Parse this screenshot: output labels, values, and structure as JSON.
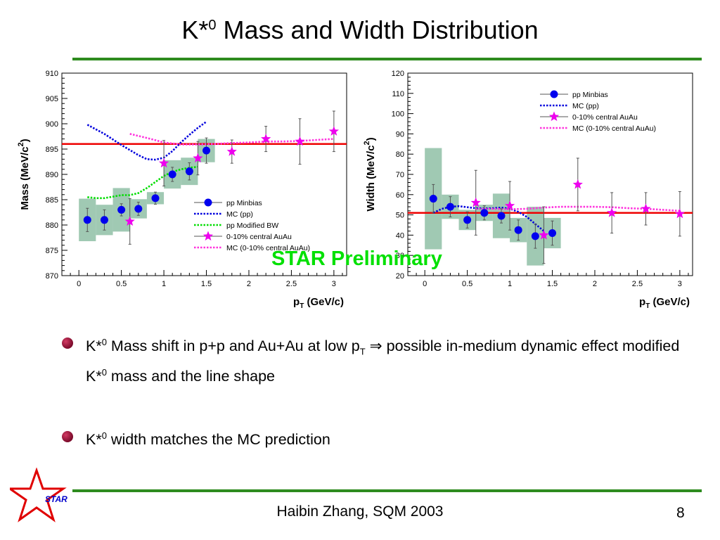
{
  "slide": {
    "title_main": "K*",
    "title_sup": "0",
    "title_rest": " Mass and Width Distribution",
    "watermark": "STAR Preliminary",
    "logo_text": "STAR",
    "footer": "Haibin Zhang, SQM 2003",
    "page_number": "8",
    "accent_color": "#2e8b1f",
    "bullets": [
      {
        "a": "K*",
        "a_sup": "0",
        "b": " Mass shift in p+p and Au+Au at low p",
        "b_sub": "T",
        "arrow": " ⇒ ",
        "c": "possible in-medium dynamic effect modified K*",
        "c_sup": "0",
        "d": " mass and the line shape"
      },
      {
        "a": "K*",
        "a_sup": "0",
        "b": " width matches the MC prediction"
      }
    ]
  },
  "chart_data": [
    {
      "type": "scatter",
      "ylabel": "Mass (MeV/c",
      "ylabel_sup": "2",
      "ylabel_close": ")",
      "xlabel": "p",
      "xlabel_sub": "T",
      "xlabel_rest": " (GeV/c)",
      "xlim": [
        -0.2,
        3.15
      ],
      "ylim": [
        870,
        910
      ],
      "xticks": [
        0,
        0.5,
        1,
        1.5,
        2,
        2.5,
        3
      ],
      "xtick_labels": [
        "0",
        "0.5",
        "1",
        "1.5",
        "2",
        "2.5",
        "3"
      ],
      "yticks": [
        870,
        875,
        880,
        885,
        890,
        895,
        900,
        905,
        910
      ],
      "ytick_labels": [
        "870",
        "875",
        "880",
        "885",
        "890",
        "895",
        "900",
        "905",
        "910"
      ],
      "reference_line": 896,
      "legend_position": "bottom-right",
      "legend": [
        "pp Minbias",
        "MC (pp)",
        "pp Modified BW",
        "0-10% central AuAu",
        "MC (0-10% central AuAu)"
      ],
      "series": [
        {
          "name": "pp Minbias",
          "marker": "circle",
          "color": "#0000ee",
          "x": [
            0.1,
            0.3,
            0.5,
            0.7,
            0.9,
            1.1,
            1.3,
            1.5
          ],
          "y": [
            881.0,
            881.0,
            883.0,
            883.2,
            885.3,
            890.0,
            890.6,
            894.7
          ],
          "err": [
            2.3,
            2.0,
            1.2,
            1.3,
            1.2,
            1.4,
            1.7,
            2.5
          ],
          "box_halfwidth": 0.1,
          "box_err": [
            4.2,
            3.0,
            4.3,
            1.9,
            1.2,
            2.8,
            2.7,
            2.3
          ]
        },
        {
          "name": "0-10% central AuAu",
          "marker": "star",
          "color": "#ee00ee",
          "x": [
            0.6,
            1.0,
            1.4,
            1.8,
            2.2,
            2.6,
            3.0
          ],
          "y": [
            880.7,
            892.2,
            893.2,
            894.5,
            897.0,
            896.5,
            898.5
          ],
          "err": [
            4.5,
            4.5,
            3.3,
            2.3,
            2.5,
            4.5,
            4.0
          ]
        },
        {
          "name": "MC (pp)",
          "line": "dotted",
          "color": "#0000dd",
          "x": [
            0.1,
            0.3,
            0.5,
            0.7,
            0.8,
            0.9,
            1.0,
            1.1,
            1.2,
            1.3,
            1.4,
            1.5
          ],
          "y": [
            899.8,
            898.0,
            895.8,
            893.8,
            893.0,
            892.9,
            893.3,
            894.6,
            896.3,
            897.8,
            899.2,
            900.4
          ]
        },
        {
          "name": "pp Modified BW",
          "line": "dotted",
          "color": "#00dd00",
          "x": [
            0.1,
            0.2,
            0.3,
            0.4,
            0.5,
            0.6,
            0.7,
            0.8,
            0.9,
            1.0,
            1.1,
            1.2,
            1.3,
            1.4
          ],
          "y": [
            885.5,
            885.3,
            885.3,
            885.6,
            885.9,
            885.9,
            886.3,
            887.3,
            888.5,
            889.7,
            890.5,
            891.0,
            891.3,
            891.5
          ]
        },
        {
          "name": "MC (0-10% central AuAu)",
          "line": "dotted",
          "color": "#ff33dd",
          "x": [
            0.6,
            0.8,
            1.0,
            1.2,
            1.4,
            1.6,
            1.8,
            2.0,
            2.2,
            2.4,
            2.6,
            2.8,
            3.0
          ],
          "y": [
            898.0,
            897.2,
            896.3,
            895.9,
            895.9,
            896.0,
            896.2,
            896.3,
            896.5,
            896.5,
            896.6,
            896.8,
            897.0
          ]
        }
      ]
    },
    {
      "type": "scatter",
      "ylabel": "Width (MeV/c",
      "ylabel_sup": "2",
      "ylabel_close": ")",
      "xlabel": "p",
      "xlabel_sub": "T",
      "xlabel_rest": " (GeV/c)",
      "xlim": [
        -0.2,
        3.15
      ],
      "ylim": [
        20,
        120
      ],
      "xticks": [
        0,
        0.5,
        1,
        1.5,
        2,
        2.5,
        3
      ],
      "xtick_labels": [
        "0",
        "0.5",
        "1",
        "1.5",
        "2",
        "2.5",
        "3"
      ],
      "yticks": [
        20,
        30,
        40,
        50,
        60,
        70,
        80,
        90,
        100,
        110,
        120
      ],
      "ytick_labels": [
        "20",
        "30",
        "40",
        "50",
        "60",
        "70",
        "80",
        "90",
        "100",
        "110",
        "120"
      ],
      "reference_line": 51,
      "legend_position": "top-right",
      "legend": [
        "pp Minbias",
        "MC (pp)",
        "0-10% central AuAu",
        "MC (0-10% central AuAu)"
      ],
      "series": [
        {
          "name": "pp Minbias",
          "marker": "circle",
          "color": "#0000ee",
          "x": [
            0.1,
            0.3,
            0.5,
            0.7,
            0.9,
            1.1,
            1.3,
            1.5
          ],
          "y": [
            58.0,
            54.0,
            47.5,
            51.0,
            49.5,
            42.5,
            39.5,
            41.0
          ],
          "err": [
            7.0,
            5.0,
            4.0,
            3.5,
            3.5,
            5.0,
            6.0,
            6.0
          ],
          "box_halfwidth": 0.1,
          "box_err": [
            25.0,
            6.0,
            5.0,
            4.0,
            11.0,
            6.0,
            14.5,
            7.5
          ]
        },
        {
          "name": "0-10% central AuAu",
          "marker": "star",
          "color": "#ee00ee",
          "x": [
            0.6,
            1.0,
            1.4,
            1.8,
            2.2,
            2.6,
            3.0
          ],
          "y": [
            56.0,
            54.5,
            40.0,
            65.0,
            51.0,
            53.0,
            50.5
          ],
          "err": [
            16.0,
            12.0,
            14.0,
            13.0,
            10.0,
            8.0,
            11.0
          ]
        },
        {
          "name": "MC (pp)",
          "line": "dotted",
          "color": "#0000dd",
          "x": [
            0.1,
            0.2,
            0.3,
            0.4,
            0.5,
            0.6,
            0.7,
            0.8,
            0.9,
            1.0,
            1.1,
            1.2,
            1.3,
            1.4
          ],
          "y": [
            51.0,
            53.0,
            54.0,
            54.3,
            53.8,
            53.3,
            53.2,
            53.3,
            53.6,
            53.0,
            51.5,
            49.0,
            45.5,
            42.0
          ]
        },
        {
          "name": "MC (0-10% central AuAu)",
          "line": "dotted",
          "color": "#ff33dd",
          "x": [
            0.6,
            0.8,
            1.0,
            1.2,
            1.4,
            1.6,
            1.8,
            2.0,
            2.2,
            2.4,
            2.6,
            2.8,
            3.0
          ],
          "y": [
            53.0,
            53.0,
            52.8,
            53.0,
            53.6,
            54.0,
            54.0,
            54.0,
            53.8,
            53.3,
            53.0,
            52.5,
            52.0
          ]
        }
      ]
    }
  ]
}
